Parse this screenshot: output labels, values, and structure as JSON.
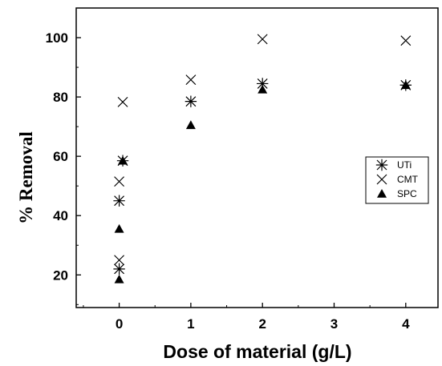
{
  "chart_data": {
    "type": "scatter",
    "title": "",
    "xlabel": "Dose of material (g/L)",
    "ylabel": "% Removal",
    "xlim": [
      -0.6,
      4.45
    ],
    "ylim": [
      9,
      110
    ],
    "x_ticks": [
      0,
      1,
      2,
      3,
      4
    ],
    "y_ticks": [
      20,
      40,
      60,
      80,
      100
    ],
    "grid": false,
    "legend_position": "right",
    "series": [
      {
        "name": "UTi",
        "marker": "asterisk",
        "color": "#000000",
        "points": [
          [
            0,
            22
          ],
          [
            0,
            45
          ],
          [
            0.05,
            58.5
          ],
          [
            1,
            78.5
          ],
          [
            2,
            84.5
          ],
          [
            4,
            84
          ]
        ]
      },
      {
        "name": "CMT",
        "marker": "x",
        "color": "#000000",
        "points": [
          [
            0,
            25
          ],
          [
            0,
            51.5
          ],
          [
            0.05,
            78.3
          ],
          [
            1,
            85.8
          ],
          [
            2,
            99.5
          ],
          [
            4,
            99
          ]
        ]
      },
      {
        "name": "SPC",
        "marker": "triangle",
        "color": "#000000",
        "points": [
          [
            0,
            18.5
          ],
          [
            0,
            35.5
          ],
          [
            0.05,
            58.5
          ],
          [
            1,
            70.5
          ],
          [
            2,
            82.5
          ],
          [
            4,
            84
          ]
        ]
      }
    ]
  }
}
